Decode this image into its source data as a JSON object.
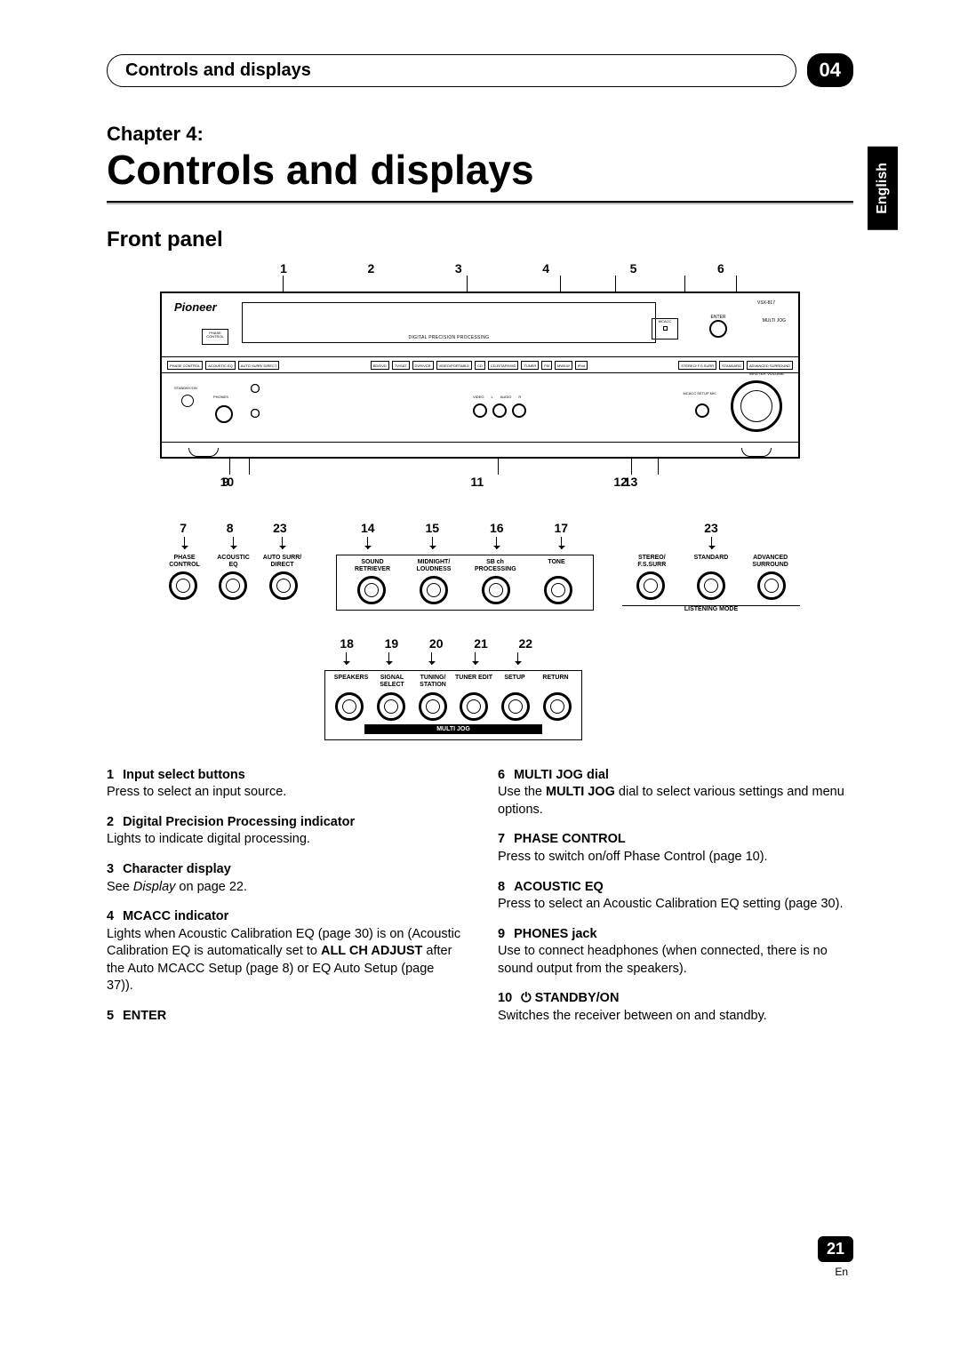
{
  "header": {
    "pill_text": "Controls and displays",
    "chapter_num": "04",
    "side_tab": "English"
  },
  "chapter_label": "Chapter 4:",
  "title": "Controls and displays",
  "section_title": "Front panel",
  "diagram": {
    "top_callouts": [
      "1",
      "2",
      "3",
      "4",
      "5",
      "6"
    ],
    "bottom_callouts_1": [
      "9",
      "10",
      "11",
      "12",
      "13"
    ],
    "brand": "Pioneer",
    "model": "VSX-817",
    "multijog": "MULTI JOG",
    "enter_label": "ENTER",
    "mcacc_label": "MCACC",
    "display_label": "DIGITAL PRECISION PROCESSING",
    "phase_box_l1": "PHASE",
    "phase_box_l2": "CONTROL",
    "master_vol_label": "MASTER VOLUME",
    "mid_buttons_left": [
      "PHASE CONTROL",
      "ACOUSTIC EQ",
      "AUTO SURR/ DIRECT"
    ],
    "mid_buttons_center": [
      "BD/DVD",
      "TV/SAT",
      "DVR/VCR",
      "VIDEO/PORTABLE",
      "CD",
      "CD-R/TAPE/MD",
      "TUNER",
      "FM",
      "MW/LW",
      "iPod"
    ],
    "mid_buttons_right": [
      "STEREO/ F.S.SURR",
      "STANDARD",
      "ADVANCED SURROUND"
    ],
    "standby_label": "STANDBY/ON",
    "phones_label": "PHONES",
    "jack_labels": [
      "VIDEO",
      "L",
      "AUDIO",
      "R"
    ],
    "mcacc_jack_label": "MCACC SETUP MIC",
    "lower_btn_row1": [
      "SOUND RETRIEVER",
      "MIDNIGHT/ LOUDNESS",
      "SB ch PROCESSING",
      "TONE"
    ],
    "lower_btn_row2": [
      "SPEAKERS",
      "SIGNAL SELECT",
      "TUNING/ STATION",
      "TUNER EDIT",
      "SETUP",
      "RETURN"
    ]
  },
  "blowups": {
    "left": {
      "nums": [
        "7",
        "8",
        "23"
      ],
      "labels": [
        "PHASE CONTROL",
        "ACOUSTIC EQ",
        "AUTO SURR/ DIRECT"
      ]
    },
    "mid_top": {
      "nums": [
        "14",
        "15",
        "16",
        "17"
      ],
      "labels": [
        "SOUND RETRIEVER",
        "MIDNIGHT/ LOUDNESS",
        "SB ch PROCESSING",
        "TONE"
      ]
    },
    "right": {
      "nums": [
        "23"
      ],
      "labels": [
        "STEREO/ F.S.SURR",
        "STANDARD",
        "ADVANCED SURROUND"
      ],
      "footer": "LISTENING MODE"
    },
    "mid_bot": {
      "nums": [
        "18",
        "19",
        "20",
        "21",
        "22"
      ],
      "labels": [
        "SPEAKERS",
        "SIGNAL SELECT",
        "TUNING/ STATION",
        "TUNER EDIT",
        "SETUP",
        "RETURN"
      ],
      "bar": "MULTI JOG"
    }
  },
  "descriptions": {
    "left": [
      {
        "num": "1",
        "name": "Input select buttons",
        "body": "Press to select an input source."
      },
      {
        "num": "2",
        "name": "Digital Precision Processing indicator",
        "body": "Lights to indicate digital processing."
      },
      {
        "num": "3",
        "name": "Character display",
        "body": "See <i>Display</i> on page 22."
      },
      {
        "num": "4",
        "name": "MCACC indicator",
        "body": "Lights when Acoustic Calibration EQ (page 30) is on (Acoustic Calibration EQ is automatically set to <b>ALL CH ADJUST</b> after the Auto MCACC Setup (page 8) or EQ Auto Setup (page 37))."
      },
      {
        "num": "5",
        "name": "ENTER",
        "body": ""
      }
    ],
    "right": [
      {
        "num": "6",
        "name": "MULTI JOG dial",
        "body": "Use the <b>MULTI JOG</b> dial to select various settings and menu options."
      },
      {
        "num": "7",
        "name": "PHASE CONTROL",
        "body": "Press to switch on/off Phase Control (page 10)."
      },
      {
        "num": "8",
        "name": "ACOUSTIC EQ",
        "body": "Press to select an Acoustic Calibration EQ setting (page 30)."
      },
      {
        "num": "9",
        "name": "PHONES jack",
        "body": "Use to connect headphones (when connected, there is no sound output from the speakers)."
      },
      {
        "num": "10",
        "name": "⏻ STANDBY/ON",
        "body": "Switches the receiver between on and standby."
      }
    ]
  },
  "footer": {
    "page_num": "21",
    "lang": "En"
  }
}
